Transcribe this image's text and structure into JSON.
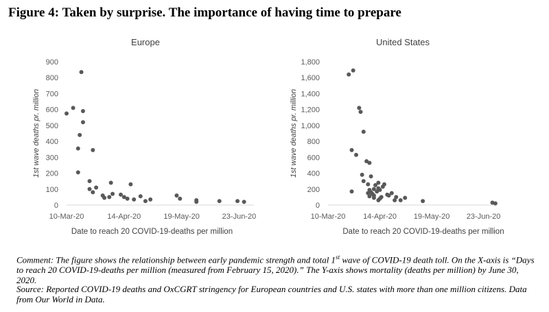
{
  "figure": {
    "label": "Figure 4",
    "title_rest": ": Taken by surprise. The importance of having time to prepare"
  },
  "notes": {
    "comment_a": "Comment: The figure shows the relationship between early pandemic strength and total 1",
    "comment_sup": "st",
    "comment_b": " wave of COVID-19 death toll. On the X-axis is “Days to reach 20 COVID-19-deaths per million (measured from February 15, 2020).” The Y-axis shows mortality (deaths per million) by June 30, 2020.",
    "source": "Source: Reported COVID-19 deaths and OxCGRT stringency for European countries and U.S. states with more than one million citizens. Data from Our World in Data."
  },
  "chart_data": [
    {
      "type": "scatter",
      "title": "Europe",
      "xlabel": "Date to reach 20 COVID-19-deaths per million",
      "ylabel": "1st wave deaths pr. million",
      "x_unit": "date",
      "xlim": [
        "2020-03-10",
        "2020-07-02"
      ],
      "xticks": [
        {
          "date": "2020-03-10",
          "label": "10-Mar-20"
        },
        {
          "date": "2020-04-14",
          "label": "14-Apr-20"
        },
        {
          "date": "2020-05-19",
          "label": "19-May-20"
        },
        {
          "date": "2020-06-23",
          "label": "23-Jun-20"
        }
      ],
      "ylim": [
        0,
        900
      ],
      "yticks": [
        "0",
        "100",
        "200",
        "300",
        "400",
        "500",
        "600",
        "700",
        "800",
        "900"
      ],
      "grid": false,
      "marker_color": "#595959",
      "points": [
        {
          "x": "2020-03-10",
          "y": 575
        },
        {
          "x": "2020-03-14",
          "y": 610
        },
        {
          "x": "2020-03-17",
          "y": 355
        },
        {
          "x": "2020-03-17",
          "y": 205
        },
        {
          "x": "2020-03-18",
          "y": 440
        },
        {
          "x": "2020-03-19",
          "y": 835
        },
        {
          "x": "2020-03-20",
          "y": 590
        },
        {
          "x": "2020-03-20",
          "y": 520
        },
        {
          "x": "2020-03-24",
          "y": 150
        },
        {
          "x": "2020-03-24",
          "y": 100
        },
        {
          "x": "2020-03-26",
          "y": 80
        },
        {
          "x": "2020-03-26",
          "y": 345
        },
        {
          "x": "2020-03-28",
          "y": 110
        },
        {
          "x": "2020-04-01",
          "y": 60
        },
        {
          "x": "2020-04-02",
          "y": 45
        },
        {
          "x": "2020-04-06",
          "y": 140
        },
        {
          "x": "2020-04-07",
          "y": 70
        },
        {
          "x": "2020-04-05",
          "y": 50
        },
        {
          "x": "2020-04-12",
          "y": 65
        },
        {
          "x": "2020-04-14",
          "y": 50
        },
        {
          "x": "2020-04-16",
          "y": 40
        },
        {
          "x": "2020-04-18",
          "y": 130
        },
        {
          "x": "2020-04-20",
          "y": 35
        },
        {
          "x": "2020-04-24",
          "y": 55
        },
        {
          "x": "2020-04-27",
          "y": 25
        },
        {
          "x": "2020-04-30",
          "y": 35
        },
        {
          "x": "2020-05-16",
          "y": 60
        },
        {
          "x": "2020-05-18",
          "y": 40
        },
        {
          "x": "2020-05-28",
          "y": 30
        },
        {
          "x": "2020-05-28",
          "y": 20
        },
        {
          "x": "2020-06-11",
          "y": 25
        },
        {
          "x": "2020-06-22",
          "y": 25
        },
        {
          "x": "2020-06-26",
          "y": 20
        }
      ]
    },
    {
      "type": "scatter",
      "title": "United States",
      "xlabel": "Date to reach 20 COVID-19-deaths per million",
      "ylabel": "1st wave deaths pr. million",
      "x_unit": "date",
      "xlim": [
        "2020-03-10",
        "2020-07-02"
      ],
      "xticks": [
        {
          "date": "2020-03-10",
          "label": "10-Mar-20"
        },
        {
          "date": "2020-04-14",
          "label": "14-Apr-20"
        },
        {
          "date": "2020-05-19",
          "label": "19-May-20"
        },
        {
          "date": "2020-06-23",
          "label": "23-Jun-20"
        }
      ],
      "ylim": [
        0,
        1800
      ],
      "yticks": [
        "0",
        "200",
        "400",
        "600",
        "800",
        "1,000",
        "1,200",
        "1,400",
        "1,600",
        "1,800"
      ],
      "grid": false,
      "marker_color": "#595959",
      "points": [
        {
          "x": "2020-03-24",
          "y": 1640
        },
        {
          "x": "2020-03-27",
          "y": 1690
        },
        {
          "x": "2020-03-26",
          "y": 690
        },
        {
          "x": "2020-03-29",
          "y": 630
        },
        {
          "x": "2020-03-26",
          "y": 170
        },
        {
          "x": "2020-03-31",
          "y": 1220
        },
        {
          "x": "2020-04-01",
          "y": 1170
        },
        {
          "x": "2020-04-03",
          "y": 920
        },
        {
          "x": "2020-04-02",
          "y": 380
        },
        {
          "x": "2020-04-03",
          "y": 300
        },
        {
          "x": "2020-04-05",
          "y": 550
        },
        {
          "x": "2020-04-06",
          "y": 260
        },
        {
          "x": "2020-04-07",
          "y": 530
        },
        {
          "x": "2020-04-08",
          "y": 360
        },
        {
          "x": "2020-04-07",
          "y": 190
        },
        {
          "x": "2020-04-06",
          "y": 150
        },
        {
          "x": "2020-04-07",
          "y": 110
        },
        {
          "x": "2020-04-08",
          "y": 160
        },
        {
          "x": "2020-04-09",
          "y": 140
        },
        {
          "x": "2020-04-10",
          "y": 200
        },
        {
          "x": "2020-04-10",
          "y": 120
        },
        {
          "x": "2020-04-10",
          "y": 90
        },
        {
          "x": "2020-04-11",
          "y": 250
        },
        {
          "x": "2020-04-12",
          "y": 170
        },
        {
          "x": "2020-04-13",
          "y": 280
        },
        {
          "x": "2020-04-13",
          "y": 210
        },
        {
          "x": "2020-04-13",
          "y": 60
        },
        {
          "x": "2020-04-14",
          "y": 190
        },
        {
          "x": "2020-04-14",
          "y": 80
        },
        {
          "x": "2020-04-15",
          "y": 100
        },
        {
          "x": "2020-04-16",
          "y": 230
        },
        {
          "x": "2020-04-17",
          "y": 260
        },
        {
          "x": "2020-04-19",
          "y": 130
        },
        {
          "x": "2020-04-20",
          "y": 120
        },
        {
          "x": "2020-04-22",
          "y": 150
        },
        {
          "x": "2020-04-24",
          "y": 60
        },
        {
          "x": "2020-04-25",
          "y": 100
        },
        {
          "x": "2020-04-28",
          "y": 60
        },
        {
          "x": "2020-05-01",
          "y": 90
        },
        {
          "x": "2020-05-13",
          "y": 50
        },
        {
          "x": "2020-06-29",
          "y": 30
        },
        {
          "x": "2020-07-01",
          "y": 20
        }
      ]
    }
  ]
}
